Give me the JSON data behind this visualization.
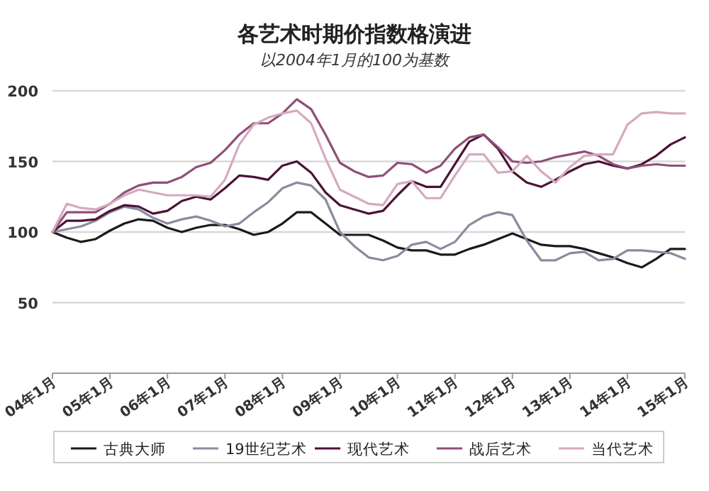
{
  "chart_data": {
    "type": "line",
    "title": "各艺术时期价指数格演进",
    "subtitle": "以2004年1月的100为基数",
    "x": [
      "2004-01",
      "2004-04",
      "2004-07",
      "2004-10",
      "2005-01",
      "2005-04",
      "2005-07",
      "2005-10",
      "2006-01",
      "2006-04",
      "2006-07",
      "2006-10",
      "2007-01",
      "2007-04",
      "2007-07",
      "2007-10",
      "2008-01",
      "2008-04",
      "2008-07",
      "2008-10",
      "2009-01",
      "2009-04",
      "2009-07",
      "2009-10",
      "2010-01",
      "2010-04",
      "2010-07",
      "2010-10",
      "2011-01",
      "2011-04",
      "2011-07",
      "2011-10",
      "2012-01",
      "2012-04",
      "2012-07",
      "2012-10",
      "2013-01",
      "2013-04",
      "2013-07",
      "2013-10",
      "2014-01",
      "2014-04",
      "2014-07",
      "2014-10",
      "2015-01"
    ],
    "series": [
      {
        "name": "古典大师",
        "color": "#1a1a1a",
        "values": [
          100,
          96,
          93,
          95,
          101,
          106,
          109,
          108,
          103,
          100,
          103,
          105,
          105,
          102,
          98,
          100,
          106,
          114,
          114,
          106,
          98,
          98,
          98,
          94,
          89,
          87,
          87,
          84,
          84,
          88,
          91,
          95,
          99,
          95,
          91,
          90,
          90,
          88,
          85,
          82,
          78,
          75,
          81,
          88,
          88
        ]
      },
      {
        "name": "19世纪艺术",
        "color": "#8d8a9e",
        "values": [
          100,
          102,
          104,
          108,
          114,
          118,
          116,
          110,
          106,
          109,
          111,
          108,
          104,
          106,
          114,
          121,
          131,
          135,
          133,
          123,
          100,
          90,
          82,
          80,
          83,
          91,
          93,
          88,
          93,
          105,
          111,
          114,
          112,
          94,
          80,
          80,
          85,
          86,
          80,
          81,
          87,
          87,
          86,
          85,
          81
        ]
      },
      {
        "name": "现代艺术",
        "color": "#4b1235",
        "values": [
          100,
          108,
          108,
          109,
          115,
          119,
          118,
          113,
          115,
          122,
          125,
          123,
          131,
          140,
          139,
          137,
          147,
          150,
          142,
          128,
          119,
          116,
          113,
          115,
          126,
          136,
          132,
          132,
          148,
          164,
          169,
          159,
          143,
          135,
          132,
          137,
          143,
          148,
          150,
          147,
          145,
          148,
          154,
          162,
          167
        ]
      },
      {
        "name": "战后艺术",
        "color": "#8e4f78",
        "values": [
          100,
          114,
          114,
          114,
          120,
          128,
          133,
          135,
          135,
          139,
          146,
          149,
          158,
          169,
          177,
          177,
          184,
          194,
          187,
          169,
          149,
          143,
          139,
          140,
          149,
          148,
          142,
          147,
          159,
          167,
          169,
          160,
          150,
          149,
          150,
          153,
          155,
          157,
          154,
          148,
          145,
          147,
          148,
          147,
          147
        ]
      },
      {
        "name": "当代艺术",
        "color": "#d5aabf",
        "values": [
          100,
          120,
          117,
          116,
          120,
          126,
          130,
          128,
          126,
          126,
          126,
          125,
          137,
          162,
          176,
          181,
          184,
          186,
          177,
          152,
          130,
          125,
          120,
          119,
          134,
          136,
          124,
          124,
          140,
          155,
          155,
          142,
          143,
          154,
          143,
          135,
          146,
          154,
          155,
          155,
          176,
          184,
          185,
          184,
          184
        ]
      }
    ],
    "xlim": [
      "2004-01",
      "2015-01"
    ],
    "xticks": [
      {
        "value": "2004-01",
        "label": "04年1月"
      },
      {
        "value": "2005-01",
        "label": "05年1月"
      },
      {
        "value": "2006-01",
        "label": "06年1月"
      },
      {
        "value": "2007-01",
        "label": "07年1月"
      },
      {
        "value": "2008-01",
        "label": "08年1月"
      },
      {
        "value": "2009-01",
        "label": "09年1月"
      },
      {
        "value": "2010-01",
        "label": "10年1月"
      },
      {
        "value": "2011-01",
        "label": "11年1月"
      },
      {
        "value": "2012-01",
        "label": "12年1月"
      },
      {
        "value": "2013-01",
        "label": "13年1月"
      },
      {
        "value": "2014-01",
        "label": "14年1月"
      },
      {
        "value": "2015-01",
        "label": "15年1月"
      }
    ],
    "ylim": [
      0,
      200
    ],
    "yticks": [
      50,
      100,
      150,
      200
    ],
    "grid": "y",
    "legend": "bottom",
    "marker": "none",
    "line_style": "solid"
  }
}
